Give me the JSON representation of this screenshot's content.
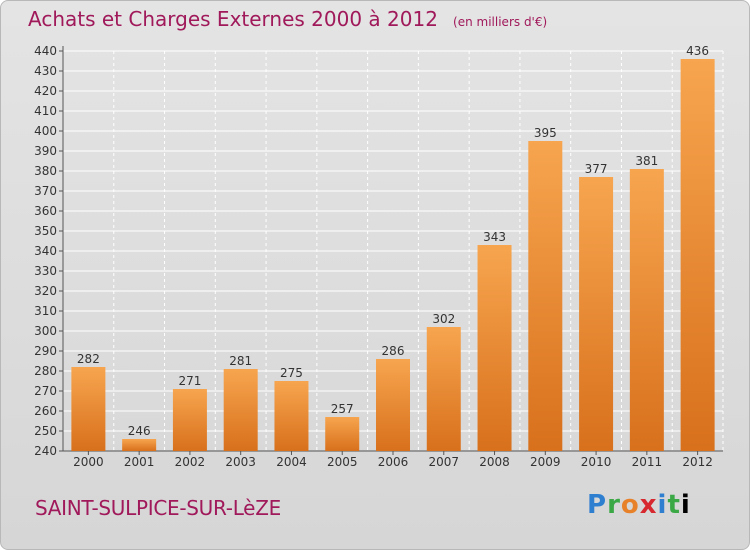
{
  "title": "Achats et Charges Externes 2000 à 2012",
  "unit": "(en milliers d'€)",
  "commune": "SAINT-SULPICE-SUR-LèZE",
  "logo": [
    "P",
    "r",
    "o",
    "x",
    "i",
    "t",
    "i"
  ],
  "colors": {
    "bar_light": "#f7a54f",
    "bar_dark": "#d8701c",
    "title": "#a0195a",
    "grid": "#ffffff"
  },
  "chart_data": {
    "type": "bar",
    "title": "Achats et Charges Externes 2000 à 2012",
    "subtitle": "(en milliers d'€)",
    "xlabel": "",
    "ylabel": "",
    "categories": [
      "2000",
      "2001",
      "2002",
      "2003",
      "2004",
      "2005",
      "2006",
      "2007",
      "2008",
      "2009",
      "2010",
      "2011",
      "2012"
    ],
    "values": [
      282,
      246,
      271,
      281,
      275,
      257,
      286,
      302,
      343,
      395,
      377,
      381,
      436
    ],
    "ylim": [
      240,
      440
    ],
    "yticks": [
      240,
      250,
      260,
      270,
      280,
      290,
      300,
      310,
      320,
      330,
      340,
      350,
      360,
      370,
      380,
      390,
      400,
      410,
      420,
      430,
      440
    ],
    "grid": true,
    "legend": "none"
  }
}
